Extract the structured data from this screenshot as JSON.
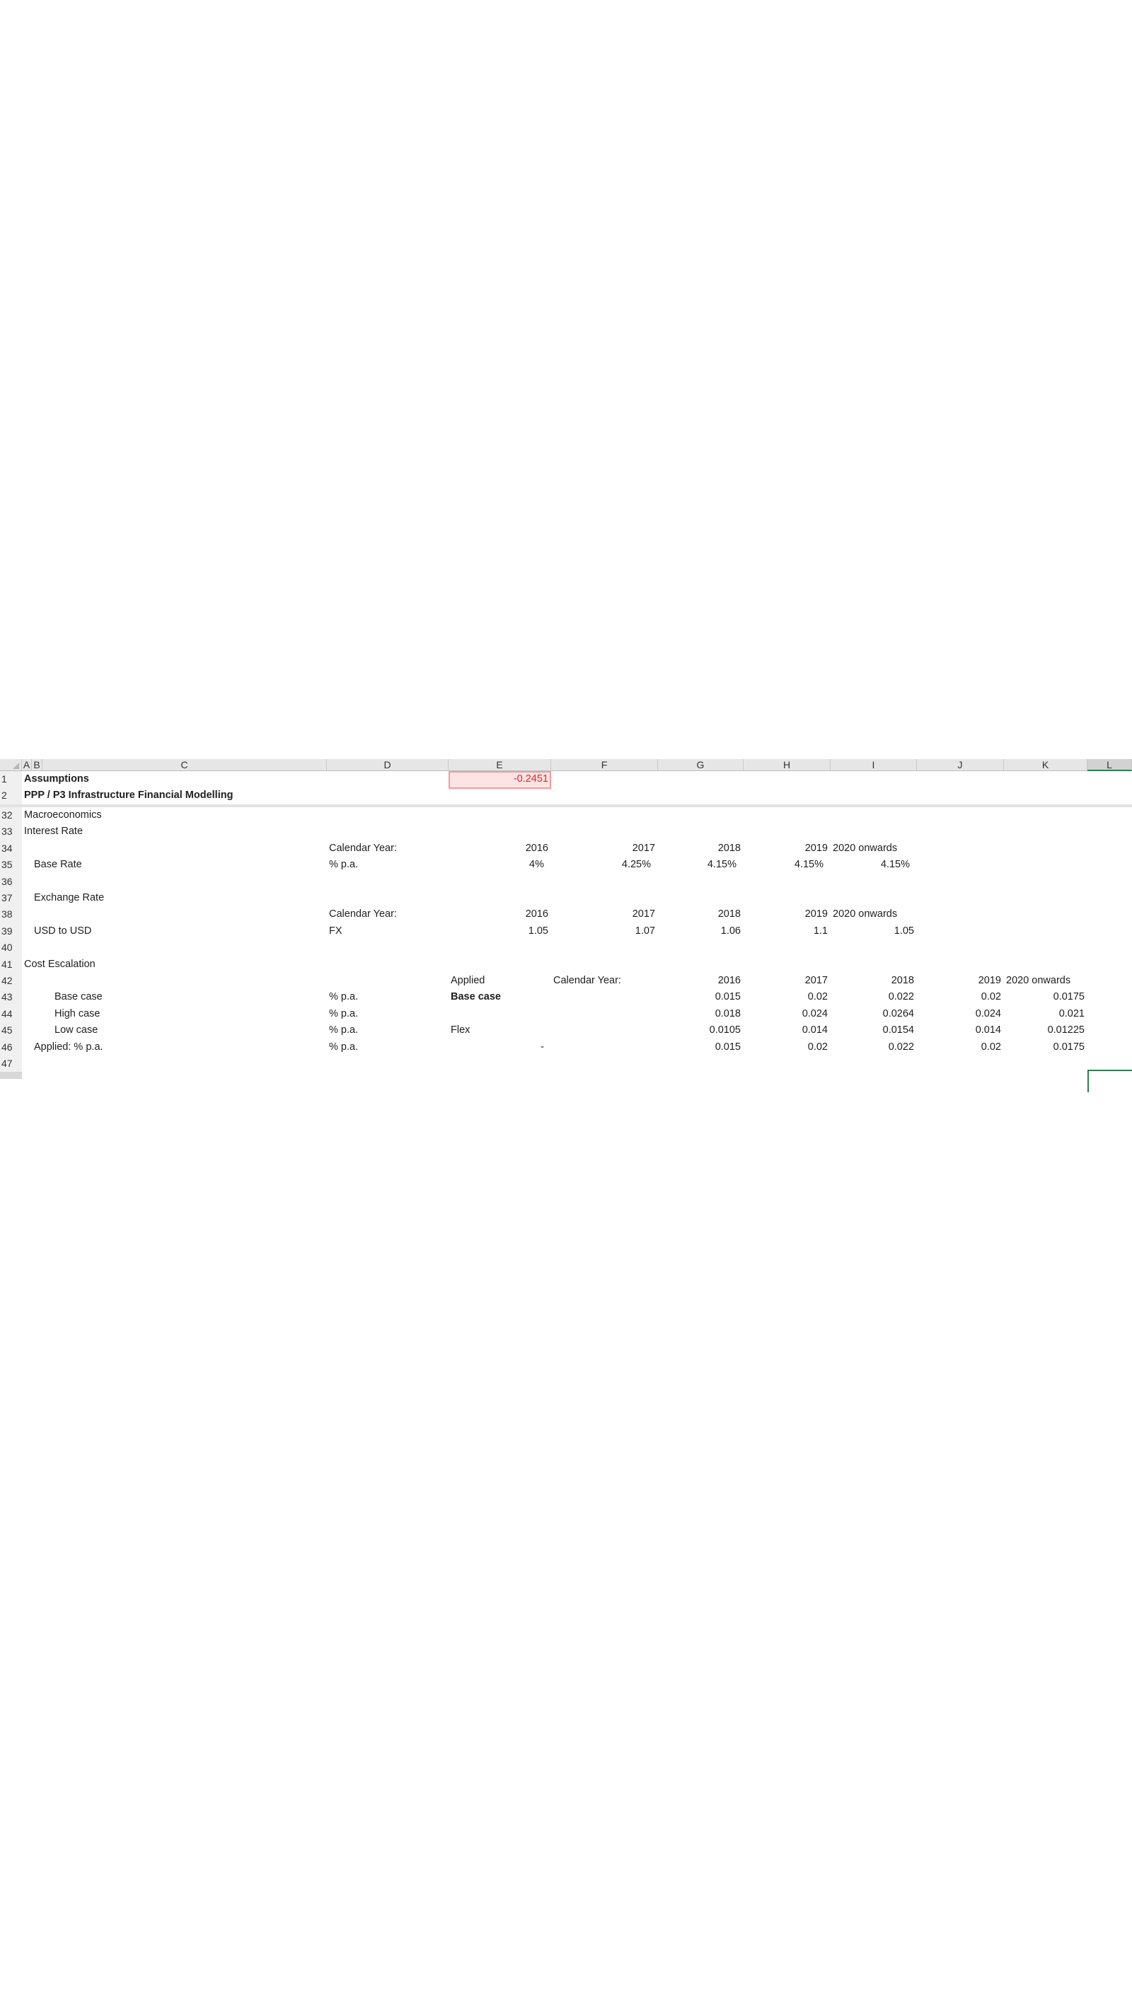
{
  "spreadsheet": {
    "columns": [
      "A",
      "B",
      "C",
      "D",
      "E",
      "F",
      "G",
      "H",
      "I",
      "J",
      "K",
      "L"
    ],
    "selected_column": "L",
    "selected_cell": "L47",
    "highlight_cell": {
      "ref": "E1",
      "fill": "#fde4e4",
      "border": "#f29b9b",
      "text_color": "#e8232a"
    },
    "rows": [
      {
        "num": "1",
        "cells": [
          {
            "col": "A",
            "text": "Assumptions",
            "bold": true
          },
          {
            "col": "E",
            "text": "-0.2451"
          }
        ]
      },
      {
        "num": "2",
        "cells": [
          {
            "col": "A",
            "text": "PPP / P3 Infrastructure Financial Modelling",
            "bold": true
          }
        ]
      },
      {
        "num": "32",
        "cells": [
          {
            "col": "A",
            "text": "Macroeconomics"
          }
        ]
      },
      {
        "num": "33",
        "cells": [
          {
            "col": "A",
            "text": "Interest Rate"
          }
        ]
      },
      {
        "num": "34",
        "cells": [
          {
            "col": "D",
            "text": "Calendar Year:"
          },
          {
            "col": "E",
            "text": "2016"
          },
          {
            "col": "F",
            "text": "2017"
          },
          {
            "col": "G",
            "text": "2018"
          },
          {
            "col": "H",
            "text": "2019"
          },
          {
            "col": "I",
            "text": "2020 onwards"
          }
        ]
      },
      {
        "num": "35",
        "cells": [
          {
            "col": "B",
            "text": "Base Rate"
          },
          {
            "col": "D",
            "text": "% p.a."
          },
          {
            "col": "E",
            "text": "4%"
          },
          {
            "col": "F",
            "text": "4.25%"
          },
          {
            "col": "G",
            "text": "4.15%"
          },
          {
            "col": "H",
            "text": "4.15%"
          },
          {
            "col": "I",
            "text": "4.15%"
          }
        ]
      },
      {
        "num": "36",
        "cells": []
      },
      {
        "num": "37",
        "cells": [
          {
            "col": "B",
            "text": "Exchange Rate"
          }
        ]
      },
      {
        "num": "38",
        "cells": [
          {
            "col": "D",
            "text": "Calendar Year:"
          },
          {
            "col": "E",
            "text": "2016"
          },
          {
            "col": "F",
            "text": "2017"
          },
          {
            "col": "G",
            "text": "2018"
          },
          {
            "col": "H",
            "text": "2019"
          },
          {
            "col": "I",
            "text": "2020 onwards"
          }
        ]
      },
      {
        "num": "39",
        "cells": [
          {
            "col": "B",
            "text": "USD to USD"
          },
          {
            "col": "D",
            "text": "FX"
          },
          {
            "col": "E",
            "text": "1.05"
          },
          {
            "col": "F",
            "text": "1.07"
          },
          {
            "col": "G",
            "text": "1.06"
          },
          {
            "col": "H",
            "text": "1.1"
          },
          {
            "col": "I",
            "text": "1.05"
          }
        ]
      },
      {
        "num": "40",
        "cells": []
      },
      {
        "num": "41",
        "cells": [
          {
            "col": "A",
            "text": "Cost Escalation"
          }
        ]
      },
      {
        "num": "42",
        "cells": [
          {
            "col": "E",
            "text": "Applied"
          },
          {
            "col": "F",
            "text": "Calendar Year:"
          },
          {
            "col": "G",
            "text": "2016"
          },
          {
            "col": "H",
            "text": "2017"
          },
          {
            "col": "I",
            "text": "2018"
          },
          {
            "col": "J",
            "text": "2019"
          },
          {
            "col": "K",
            "text": "2020 onwards"
          }
        ]
      },
      {
        "num": "43",
        "cells": [
          {
            "col": "C",
            "text": "Base case"
          },
          {
            "col": "D",
            "text": "% p.a."
          },
          {
            "col": "E",
            "text": "Base case",
            "bold": true
          },
          {
            "col": "G",
            "text": "0.015"
          },
          {
            "col": "H",
            "text": "0.02"
          },
          {
            "col": "I",
            "text": "0.022"
          },
          {
            "col": "J",
            "text": "0.02"
          },
          {
            "col": "K",
            "text": "0.0175"
          }
        ]
      },
      {
        "num": "44",
        "cells": [
          {
            "col": "C",
            "text": "High case"
          },
          {
            "col": "D",
            "text": "% p.a."
          },
          {
            "col": "G",
            "text": "0.018"
          },
          {
            "col": "H",
            "text": "0.024"
          },
          {
            "col": "I",
            "text": "0.0264"
          },
          {
            "col": "J",
            "text": "0.024"
          },
          {
            "col": "K",
            "text": "0.021"
          }
        ]
      },
      {
        "num": "45",
        "cells": [
          {
            "col": "C",
            "text": "Low case"
          },
          {
            "col": "D",
            "text": "% p.a."
          },
          {
            "col": "E",
            "text": "Flex"
          },
          {
            "col": "G",
            "text": "0.0105"
          },
          {
            "col": "H",
            "text": "0.014"
          },
          {
            "col": "I",
            "text": "0.0154"
          },
          {
            "col": "J",
            "text": "0.014"
          },
          {
            "col": "K",
            "text": "0.01225"
          }
        ]
      },
      {
        "num": "46",
        "cells": [
          {
            "col": "B",
            "text": "Applied: % p.a."
          },
          {
            "col": "D",
            "text": "% p.a."
          },
          {
            "col": "E",
            "text": "-"
          },
          {
            "col": "G",
            "text": "0.015"
          },
          {
            "col": "H",
            "text": "0.02"
          },
          {
            "col": "I",
            "text": "0.022"
          },
          {
            "col": "J",
            "text": "0.02"
          },
          {
            "col": "K",
            "text": "0.0175"
          }
        ]
      },
      {
        "num": "47",
        "cells": []
      }
    ]
  }
}
